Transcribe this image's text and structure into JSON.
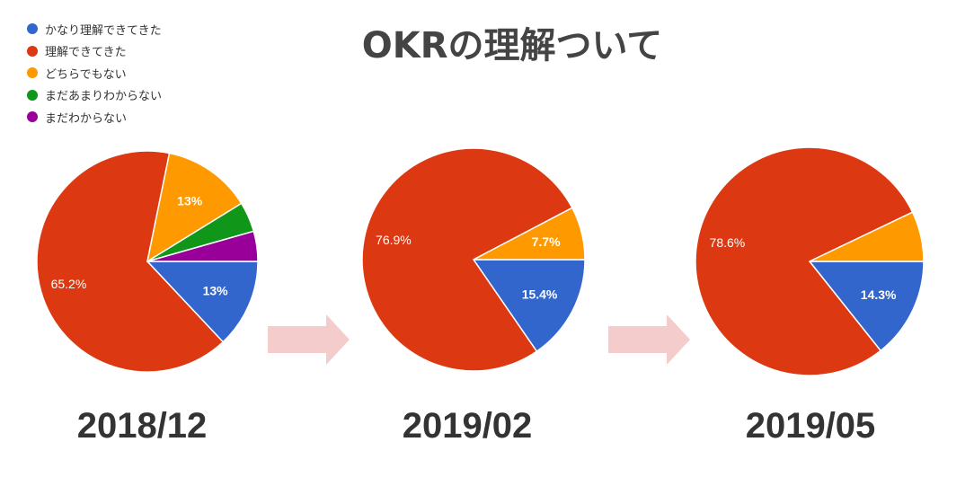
{
  "title": "OKRの理解ついて",
  "colors": {
    "arrow": "#f4cccc",
    "slice_border": "#ffffff",
    "label_text": "#ffffff"
  },
  "legend": {
    "placement": "top-left",
    "items": [
      {
        "label": "かなり理解できてきた",
        "color": "#3366cc"
      },
      {
        "label": "理解できてきた",
        "color": "#dc3912"
      },
      {
        "label": "どちらでもない",
        "color": "#ff9900"
      },
      {
        "label": "まだあまりわからない",
        "color": "#109618"
      },
      {
        "label": "まだわからない",
        "color": "#990099"
      }
    ]
  },
  "chart_data": [
    {
      "type": "pie",
      "title": "2018/12",
      "labels": [
        "かなり理解できてきた",
        "理解できてきた",
        "どちらでもない",
        "まだあまりわからない",
        "まだわからない"
      ],
      "values": [
        13.0,
        65.2,
        13.0,
        4.4,
        4.4
      ],
      "data_labels": [
        "13%",
        "65.2%",
        "13%",
        "",
        ""
      ]
    },
    {
      "type": "pie",
      "title": "2019/02",
      "labels": [
        "かなり理解できてきた",
        "理解できてきた",
        "どちらでもない",
        "まだあまりわからない",
        "まだわからない"
      ],
      "values": [
        15.4,
        76.9,
        7.7,
        0,
        0
      ],
      "data_labels": [
        "15.4%",
        "76.9%",
        "7.7%",
        "",
        ""
      ]
    },
    {
      "type": "pie",
      "title": "2019/05",
      "labels": [
        "かなり理解できてきた",
        "理解できてきた",
        "どちらでもない",
        "まだあまりわからない",
        "まだわからない"
      ],
      "values": [
        14.3,
        78.6,
        7.1,
        0,
        0
      ],
      "data_labels": [
        "14.3%",
        "78.6%",
        "",
        "",
        ""
      ]
    }
  ]
}
